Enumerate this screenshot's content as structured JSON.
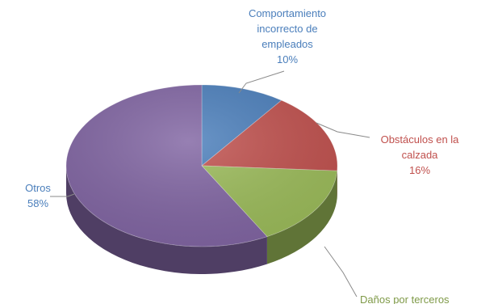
{
  "chart_data": {
    "type": "pie",
    "style": "3d",
    "slices": [
      {
        "name": "Comportamiento incorrecto de empleados",
        "label_lines": [
          "Comportamiento",
          "incorrecto de",
          "empleados"
        ],
        "value": 10,
        "value_label": "10%",
        "color": "#4a7ebb",
        "label_color": "#4a7ebb"
      },
      {
        "name": "Obstáculos en la calzada",
        "label_lines": [
          "Obstáculos en la",
          "calzada"
        ],
        "value": 16,
        "value_label": "16%",
        "color": "#c0504d",
        "label_color": "#c0504d"
      },
      {
        "name": "Daños por terceros",
        "label_lines": [
          "Daños por terceros"
        ],
        "value": 16,
        "value_label": "",
        "color": "#9bbb59",
        "label_color": "#7f9a48"
      },
      {
        "name": "Otros",
        "label_lines": [
          "Otros"
        ],
        "value": 58,
        "value_label": "58%",
        "color": "#8064a2",
        "label_color": "#4a7ebb"
      }
    ]
  }
}
